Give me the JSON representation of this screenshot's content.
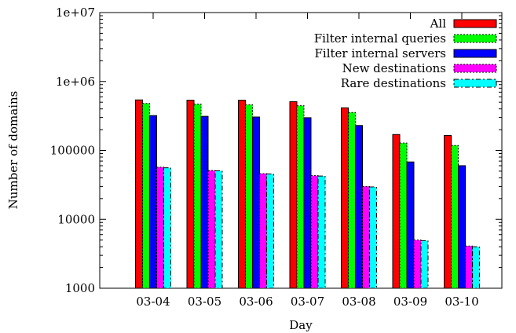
{
  "chart_data": {
    "type": "bar",
    "title": "",
    "xlabel": "Day",
    "ylabel": "Number of domains",
    "yscale": "log",
    "ylim": [
      1000,
      10000000
    ],
    "y_ticks": [
      "1000",
      "10000",
      "100000",
      "1e+06",
      "1e+07"
    ],
    "y_tick_values": [
      1000,
      10000,
      100000,
      1000000,
      10000000
    ],
    "categories": [
      "03-04",
      "03-05",
      "03-06",
      "03-07",
      "03-08",
      "03-09",
      "03-10"
    ],
    "legend_position": "top-right",
    "series": [
      {
        "name": "All",
        "color": "#ff0000",
        "values": [
          540000,
          535000,
          535000,
          510000,
          415000,
          170000,
          165000
        ]
      },
      {
        "name": "Filter internal queries",
        "color": "#00ff00",
        "values": [
          480000,
          470000,
          460000,
          445000,
          355000,
          128000,
          118000
        ]
      },
      {
        "name": "Filter internal servers",
        "color": "#0000ff",
        "values": [
          320000,
          312000,
          305000,
          298000,
          230000,
          68000,
          60000
        ]
      },
      {
        "name": "New destinations",
        "color": "#ff00ff",
        "values": [
          57000,
          51000,
          46000,
          43000,
          30000,
          5000,
          4100
        ]
      },
      {
        "name": "Rare destinations",
        "color": "#00ffff",
        "values": [
          56000,
          50500,
          45500,
          42500,
          29500,
          4900,
          4000
        ]
      }
    ]
  }
}
